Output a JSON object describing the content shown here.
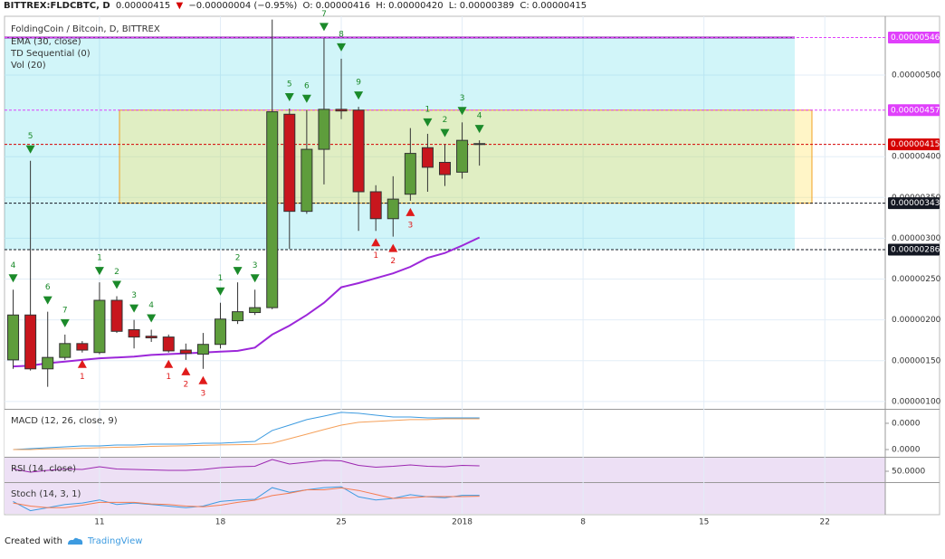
{
  "header": {
    "symbol": "BITTREX:FLDCBTC, D",
    "last": "0.00000415",
    "arrow": "▼",
    "change": "−0.00000004 (−0.95%)",
    "ohlc": [
      {
        "label": "O:",
        "value": "0.00000416"
      },
      {
        "label": "H:",
        "value": "0.00000420"
      },
      {
        "label": "L:",
        "value": "0.00000389"
      },
      {
        "label": "C:",
        "value": "0.00000415"
      }
    ]
  },
  "chart_data": {
    "type": "candlestick",
    "title": "FoldingCoin / Bitcoin, D, BITTREX",
    "studies": [
      "EMA (30, close)",
      "TD Sequential (0)",
      "Vol (20)"
    ],
    "categories": [
      null,
      null,
      null,
      null,
      null,
      "11",
      null,
      null,
      null,
      null,
      null,
      null,
      "18",
      null,
      null,
      null,
      null,
      null,
      null,
      "25",
      null,
      null,
      null,
      null,
      null,
      null,
      "2018",
      null,
      null,
      null,
      null,
      null,
      null,
      "8",
      null,
      null,
      null,
      null,
      null,
      null,
      "15",
      null,
      null,
      null,
      null,
      null,
      null,
      "22",
      null,
      null,
      null
    ],
    "up_color": "#5e9d3c",
    "down_color": "#c8161d",
    "open": [
      1.51e-06,
      2.06e-06,
      1.4e-06,
      1.54e-06,
      1.71e-06,
      1.6e-06,
      2.24e-06,
      1.88e-06,
      1.8e-06,
      1.79e-06,
      1.63e-06,
      1.58e-06,
      1.7e-06,
      1.99e-06,
      2.09e-06,
      2.15e-06,
      4.52e-06,
      3.33e-06,
      4.09e-06,
      4.58e-06,
      4.57e-06,
      3.57e-06,
      3.24e-06,
      3.54e-06,
      4.11e-06,
      3.93e-06,
      3.81e-06,
      4.16e-06,
      null,
      null,
      null,
      null,
      null,
      null,
      null,
      null,
      null,
      null,
      null,
      null,
      null,
      null,
      null,
      null,
      null,
      null,
      null,
      null,
      null,
      null,
      null
    ],
    "high": [
      2.37e-06,
      3.95e-06,
      2.1e-06,
      1.82e-06,
      1.74e-06,
      2.46e-06,
      2.29e-06,
      2e-06,
      1.88e-06,
      1.82e-06,
      1.71e-06,
      1.84e-06,
      2.21e-06,
      2.46e-06,
      2.37e-06,
      5.68e-06,
      4.59e-06,
      4.57e-06,
      5.45e-06,
      5.2e-06,
      4.61e-06,
      3.65e-06,
      3.76e-06,
      4.35e-06,
      4.28e-06,
      4.15e-06,
      4.42e-06,
      4.2e-06,
      null,
      null,
      null,
      null,
      null,
      null,
      null,
      null,
      null,
      null,
      null,
      null,
      null,
      null,
      null,
      null,
      null,
      null,
      null,
      null,
      null,
      null,
      null
    ],
    "low": [
      1.4e-06,
      1.38e-06,
      1.18e-06,
      1.51e-06,
      1.6e-06,
      1.58e-06,
      1.84e-06,
      1.65e-06,
      1.73e-06,
      1.6e-06,
      1.51e-06,
      1.4e-06,
      1.65e-06,
      1.95e-06,
      2.06e-06,
      2.13e-06,
      2.87e-06,
      3.3e-06,
      3.66e-06,
      4.46e-06,
      3.09e-06,
      3.09e-06,
      3.02e-06,
      3.46e-06,
      3.57e-06,
      3.64e-06,
      3.73e-06,
      3.89e-06,
      null,
      null,
      null,
      null,
      null,
      null,
      null,
      null,
      null,
      null,
      null,
      null,
      null,
      null,
      null,
      null,
      null,
      null,
      null,
      null,
      null,
      null,
      null
    ],
    "close": [
      2.06e-06,
      1.4e-06,
      1.54e-06,
      1.71e-06,
      1.63e-06,
      2.24e-06,
      1.86e-06,
      1.79e-06,
      1.78e-06,
      1.62e-06,
      1.59e-06,
      1.7e-06,
      2.01e-06,
      2.1e-06,
      2.15e-06,
      4.55e-06,
      3.33e-06,
      4.09e-06,
      4.58e-06,
      4.56e-06,
      3.57e-06,
      3.24e-06,
      3.48e-06,
      4.04e-06,
      3.87e-06,
      3.78e-06,
      4.2e-06,
      4.15e-06,
      null,
      null,
      null,
      null,
      null,
      null,
      null,
      null,
      null,
      null,
      null,
      null,
      null,
      null,
      null,
      null,
      null,
      null,
      null,
      null,
      null,
      null,
      null
    ],
    "ema": {
      "color": "#9c27d9",
      "values": [
        1.43e-06,
        1.44e-06,
        1.47e-06,
        1.49e-06,
        1.51e-06,
        1.53e-06,
        1.54e-06,
        1.55e-06,
        1.57e-06,
        1.58e-06,
        1.59e-06,
        1.6e-06,
        1.61e-06,
        1.62e-06,
        1.66e-06,
        1.82e-06,
        1.93e-06,
        2.06e-06,
        2.21e-06,
        2.4e-06,
        2.45e-06,
        2.51e-06,
        2.57e-06,
        2.65e-06,
        2.76e-06,
        2.82e-06,
        2.91e-06,
        3.01e-06,
        null,
        null,
        null,
        null,
        null,
        null,
        null,
        null,
        null,
        null,
        null,
        null,
        null,
        null,
        null,
        null,
        null,
        null,
        null,
        null,
        null,
        null,
        null
      ]
    },
    "td_sell": {
      "color": "#1b8a2a",
      "labels": [
        "4",
        "5",
        "6",
        "7",
        null,
        "1",
        "2",
        "3",
        "4",
        null,
        null,
        null,
        "1",
        "2",
        "3",
        null,
        "5",
        "6",
        "7",
        "8",
        "9",
        null,
        null,
        null,
        "1",
        "2",
        "3",
        "4",
        null,
        null,
        null,
        null,
        null,
        null,
        null,
        null,
        null,
        null,
        null,
        null,
        null,
        null,
        null,
        null,
        null,
        null,
        null,
        null,
        null,
        null,
        null
      ]
    },
    "td_buy": {
      "color": "#e01b1b",
      "labels": [
        null,
        null,
        null,
        null,
        "1",
        null,
        null,
        null,
        null,
        "1",
        "2",
        "3",
        null,
        null,
        null,
        null,
        null,
        null,
        null,
        null,
        null,
        "1",
        "2",
        "3",
        null,
        null,
        null,
        null,
        null,
        null,
        null,
        null,
        null,
        null,
        null,
        null,
        null,
        null,
        null,
        null,
        null,
        null,
        null,
        null,
        null,
        null,
        null,
        null,
        null,
        null,
        null
      ]
    },
    "ylim": [
      9.1e-07,
      5.72e-06
    ],
    "yticks": [
      {
        "value": 1e-06,
        "label": "0.00000100"
      },
      {
        "value": 1.5e-06,
        "label": "0.00000150"
      },
      {
        "value": 2e-06,
        "label": "0.00000200"
      },
      {
        "value": 2.5e-06,
        "label": "0.00000250"
      },
      {
        "value": 3e-06,
        "label": "0.00000300"
      },
      {
        "value": 3.5e-06,
        "label": "0.00000350"
      },
      {
        "value": 4e-06,
        "label": "0.00000400"
      },
      {
        "value": 5e-06,
        "label": "0.00000500"
      }
    ],
    "grid": true,
    "levels": [
      {
        "value": 5.46e-06,
        "label": "0.00000546",
        "color": "#e040fb"
      },
      {
        "value": 4.57e-06,
        "label": "0.00000457",
        "color": "#e040fb"
      },
      {
        "value": 4.15e-06,
        "label": "0.00000415",
        "color": "#d50000"
      },
      {
        "value": 3.43e-06,
        "label": "0.00000343",
        "color": "#131722"
      },
      {
        "value": 2.86e-06,
        "label": "0.00000286",
        "color": "#131722"
      }
    ],
    "macd": {
      "title": "MACD (12, 26, close, 9)",
      "ylim": [
        -5.5e-08,
        3.03e-07
      ],
      "yticks": [
        {
          "value": 2e-07,
          "label": "0.0000"
        },
        {
          "value": 0,
          "label": "0.0000"
        }
      ],
      "series": [
        {
          "color": "#3d9be0",
          "values": [
            0,
            6.9e-09,
            1.38e-08,
            2.07e-08,
            2.76e-08,
            2.76e-08,
            3.45e-08,
            3.45e-08,
            4.14e-08,
            4.14e-08,
            4.14e-08,
            4.83e-08,
            4.83e-08,
            5.52e-08,
            6.21e-08,
            1.45e-07,
            1.86e-07,
            2.28e-07,
            2.55e-07,
            2.83e-07,
            2.76e-07,
            2.62e-07,
            2.48e-07,
            2.48e-07,
            2.41e-07,
            2.41e-07,
            2.41e-07,
            2.41e-07,
            null,
            null,
            null,
            null,
            null,
            null,
            null,
            null,
            null,
            null,
            null,
            null,
            null,
            null,
            null,
            null,
            null,
            null,
            null,
            null,
            null,
            null,
            null
          ]
        },
        {
          "color": "#f5a05a",
          "values": [
            0,
            0,
            5e-09,
            7e-09,
            1e-08,
            1.4e-08,
            1.7e-08,
            2e-08,
            2.4e-08,
            2.7e-08,
            3e-08,
            3.2e-08,
            3.5e-08,
            3.7e-08,
            4e-08,
            4.83e-08,
            8.28e-08,
            1.17e-07,
            1.52e-07,
            1.86e-07,
            2.07e-07,
            2.14e-07,
            2.21e-07,
            2.28e-07,
            2.28e-07,
            2.34e-07,
            2.34e-07,
            2.34e-07,
            null,
            null,
            null,
            null,
            null,
            null,
            null,
            null,
            null,
            null,
            null,
            null,
            null,
            null,
            null,
            null,
            null,
            null,
            null,
            null,
            null,
            null,
            null
          ]
        }
      ]
    },
    "rsi": {
      "title": "RSI (14, close)",
      "ylim": [
        26,
        80
      ],
      "yticks": [
        {
          "value": 50,
          "label": "50.0000"
        }
      ],
      "series": [
        {
          "color": "#9c27b0",
          "values": [
            55,
            48,
            52,
            55,
            54,
            60,
            55,
            54,
            53,
            52,
            52,
            54,
            58,
            60,
            61,
            76,
            66,
            70,
            74,
            73,
            63,
            59,
            61,
            64,
            61,
            60,
            63,
            62,
            null,
            null,
            null,
            null,
            null,
            null,
            null,
            null,
            null,
            null,
            null,
            null,
            null,
            null,
            null,
            null,
            null,
            null,
            null,
            null,
            null,
            null,
            null
          ]
        }
      ]
    },
    "stoch": {
      "title": "Stoch (14, 3, 1)",
      "ylim": [
        0,
        100
      ],
      "yticks": [],
      "series": [
        {
          "color": "#3d9be0",
          "values": [
            40,
            10,
            20,
            30,
            35,
            45,
            30,
            35,
            30,
            25,
            20,
            25,
            40,
            45,
            47,
            85,
            70,
            78,
            85,
            88,
            55,
            45,
            50,
            62,
            55,
            52,
            60,
            60,
            null,
            null,
            null,
            null,
            null,
            null,
            null,
            null,
            null,
            null,
            null,
            null,
            null,
            null,
            null,
            null,
            null,
            null,
            null,
            null,
            null,
            null,
            null
          ]
        },
        {
          "color": "#f57c50",
          "values": [
            35,
            25,
            20,
            20,
            28,
            37,
            37,
            37,
            32,
            30,
            25,
            23,
            28,
            37,
            44,
            59,
            67,
            78,
            78,
            84,
            76,
            63,
            50,
            52,
            56,
            56,
            56,
            57,
            null,
            null,
            null,
            null,
            null,
            null,
            null,
            null,
            null,
            null,
            null,
            null,
            null,
            null,
            null,
            null,
            null,
            null,
            null,
            null,
            null,
            null,
            null
          ]
        }
      ]
    }
  },
  "footer": {
    "prefix": "Created with",
    "brand": "TradingView"
  }
}
